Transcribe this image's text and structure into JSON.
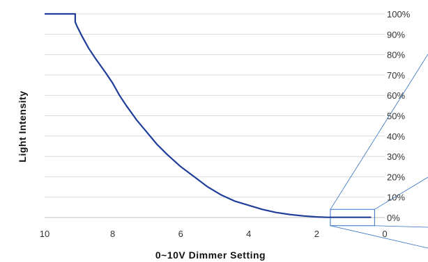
{
  "chart_data": {
    "type": "line",
    "title": "",
    "xlabel": "0~10V Dimmer Setting",
    "ylabel": "Light Intensity",
    "x_reversed": true,
    "xlim": [
      0,
      10
    ],
    "ylim": [
      0,
      100
    ],
    "y_axis_position": "right",
    "grid": true,
    "x_ticks": [
      "10",
      "8",
      "6",
      "4",
      "2",
      "0"
    ],
    "x_tick_values": [
      10,
      8,
      6,
      4,
      2,
      0
    ],
    "y_ticks": [
      "0%",
      "10%",
      "20%",
      "30%",
      "40%",
      "50%",
      "60%",
      "70%",
      "80%",
      "90%",
      "100%"
    ],
    "y_tick_values": [
      0,
      10,
      20,
      30,
      40,
      50,
      60,
      70,
      80,
      90,
      100
    ],
    "series": [
      {
        "color": "#1f3d99",
        "x": [
          10,
          9.1,
          9.1,
          9.05,
          8.9,
          8.7,
          8.5,
          8.2,
          8.0,
          7.8,
          7.6,
          7.3,
          7.0,
          6.7,
          6.4,
          6.0,
          5.6,
          5.2,
          4.8,
          4.4,
          4.0,
          3.6,
          3.2,
          2.8,
          2.4,
          2.0,
          1.7,
          0.4
        ],
        "y": [
          100,
          100,
          96,
          94,
          89,
          83,
          78,
          71,
          66,
          60,
          55,
          48,
          42,
          36,
          31,
          25,
          20,
          15,
          11,
          8,
          6,
          4,
          2.5,
          1.5,
          0.8,
          0.3,
          0.1,
          0.1
        ]
      }
    ],
    "annotations": [
      {
        "type": "zoom-box",
        "x_range": [
          0.3,
          1.6
        ],
        "y_range": [
          -4,
          4
        ]
      }
    ]
  }
}
